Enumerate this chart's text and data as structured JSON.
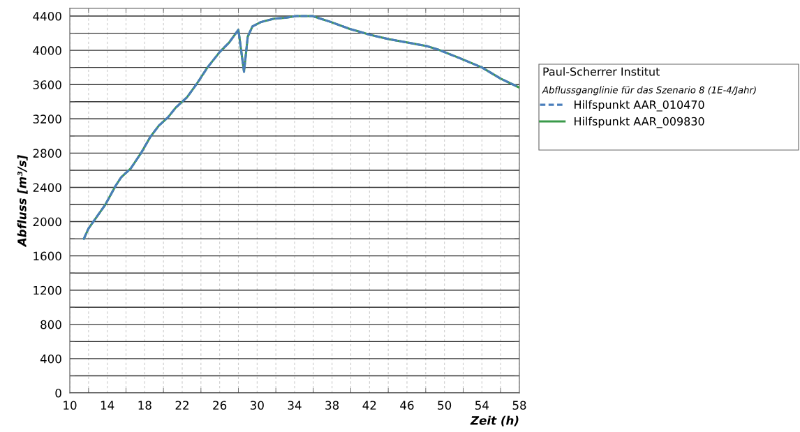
{
  "chart_data": {
    "type": "line",
    "xlabel": "Zeit (h)",
    "ylabel": "Abfluss [m³/s]",
    "legend_title": "Paul-Scherrer Institut",
    "subtitle": "Abflussganglinie für das Szenario 8 (1E-4/Jahr)",
    "x": [
      11.5,
      12.0,
      13.8,
      14.9,
      15.5,
      16.5,
      17.6,
      18.6,
      19.5,
      20.5,
      21.3,
      22.5,
      23.5,
      24.7,
      26.0,
      27.0,
      28.0,
      28.6,
      29.0,
      29.5,
      30.4,
      31.8,
      33.0,
      34.2,
      34.7,
      35.9,
      37.9,
      39.9,
      42.1,
      44.1,
      46.1,
      48.1,
      49.3,
      51.6,
      54.0,
      56.0,
      57.9
    ],
    "series": [
      {
        "name": "Hilfspunkt AAR_010470",
        "color": "#4a7ebb",
        "line_style": "dashed",
        "values": [
          1800,
          1920,
          2200,
          2420,
          2520,
          2620,
          2800,
          2990,
          3120,
          3220,
          3330,
          3450,
          3600,
          3800,
          3980,
          4090,
          4240,
          3750,
          4160,
          4280,
          4330,
          4370,
          4380,
          4400,
          4400,
          4400,
          4330,
          4250,
          4180,
          4130,
          4090,
          4050,
          4010,
          3910,
          3800,
          3670,
          3570
        ]
      },
      {
        "name": "Hilfspunkt AAR_009830",
        "color": "#3a9a4a",
        "line_style": "solid",
        "values": [
          1800,
          1920,
          2200,
          2420,
          2520,
          2620,
          2800,
          2990,
          3120,
          3220,
          3330,
          3450,
          3600,
          3800,
          3980,
          4090,
          4240,
          3750,
          4160,
          4280,
          4330,
          4370,
          4380,
          4400,
          4400,
          4400,
          4330,
          4250,
          4180,
          4130,
          4090,
          4050,
          4010,
          3910,
          3800,
          3670,
          3570
        ]
      }
    ],
    "xlim": [
      10,
      58
    ],
    "xticks": [
      10,
      14,
      18,
      22,
      26,
      30,
      34,
      38,
      42,
      46,
      50,
      54,
      58
    ],
    "ylim": [
      0,
      4490
    ],
    "yticks": [
      0,
      400,
      800,
      1200,
      1600,
      2000,
      2400,
      2800,
      3200,
      3600,
      4000,
      4400
    ],
    "grid": true,
    "legend": "right",
    "marker": "none"
  }
}
